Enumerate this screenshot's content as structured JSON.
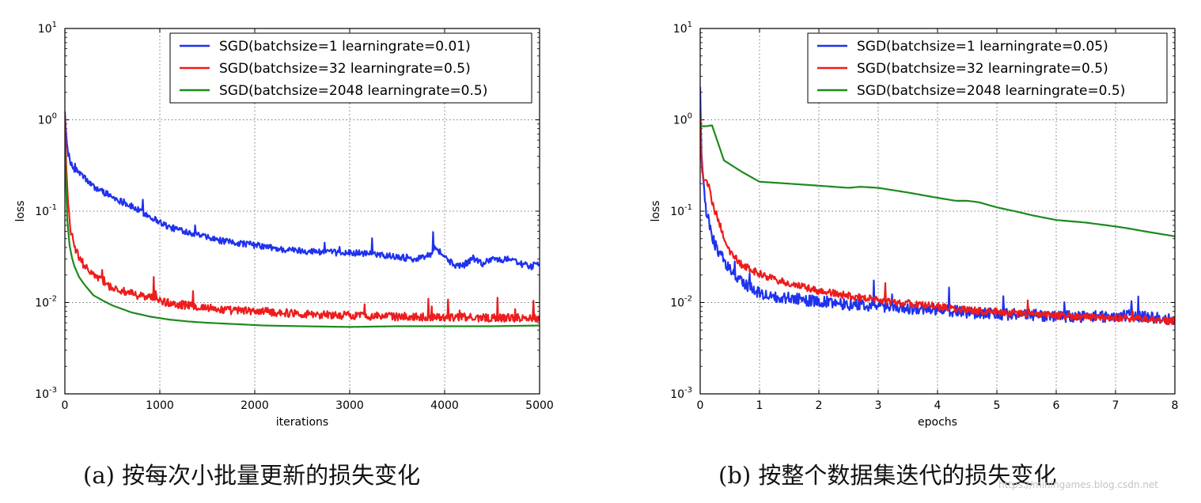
{
  "chart_data": [
    {
      "type": "line",
      "xlabel": "iterations",
      "ylabel": "loss",
      "xlim": [
        0,
        5000
      ],
      "ylim": [
        0.001,
        10
      ],
      "yscale": "log",
      "grid": true,
      "legend_position": "top-right",
      "x_ticks": [
        "0",
        "1000",
        "2000",
        "3000",
        "4000",
        "5000"
      ],
      "x_tick_values": [
        0,
        1000,
        2000,
        3000,
        4000,
        5000
      ],
      "y_ticks": [
        {
          "base": "10",
          "exp": "1",
          "value": 10
        },
        {
          "base": "10",
          "exp": "0",
          "value": 1
        },
        {
          "base": "10",
          "exp": "-1",
          "value": 0.1
        },
        {
          "base": "10",
          "exp": "-2",
          "value": 0.01
        },
        {
          "base": "10",
          "exp": "-3",
          "value": 0.001
        }
      ],
      "series": [
        {
          "name": "SGD(batchsize=1 learningrate=0.01)",
          "color": "#1f32ee",
          "noise": 0.07,
          "x": [
            0,
            10,
            30,
            60,
            100,
            150,
            200,
            300,
            400,
            500,
            700,
            900,
            1100,
            1300,
            1500,
            1700,
            1900,
            2100,
            2300,
            2500,
            2700,
            2900,
            3100,
            3300,
            3500,
            3700,
            3850,
            3900,
            3950,
            4000,
            4100,
            4200,
            4300,
            4400,
            4500,
            4600,
            4700,
            4800,
            4900,
            5000
          ],
          "y": [
            1.3,
            0.7,
            0.45,
            0.32,
            0.28,
            0.26,
            0.23,
            0.18,
            0.16,
            0.14,
            0.11,
            0.085,
            0.065,
            0.058,
            0.05,
            0.045,
            0.043,
            0.04,
            0.037,
            0.036,
            0.035,
            0.034,
            0.034,
            0.033,
            0.031,
            0.029,
            0.033,
            0.04,
            0.035,
            0.031,
            0.025,
            0.025,
            0.03,
            0.026,
            0.03,
            0.028,
            0.03,
            0.026,
            0.024,
            0.026
          ]
        },
        {
          "name": "SGD(batchsize=32 learningrate=0.5)",
          "color": "#ee1c1c",
          "noise": 0.09,
          "x": [
            0,
            10,
            30,
            60,
            100,
            150,
            200,
            300,
            400,
            500,
            700,
            900,
            1100,
            1300,
            1500,
            1700,
            2000,
            2300,
            2600,
            3000,
            3500,
            4000,
            4500,
            5000
          ],
          "y": [
            1.2,
            0.4,
            0.13,
            0.06,
            0.04,
            0.03,
            0.025,
            0.02,
            0.016,
            0.014,
            0.012,
            0.011,
            0.0095,
            0.009,
            0.0085,
            0.008,
            0.0078,
            0.0075,
            0.0072,
            0.007,
            0.0068,
            0.0067,
            0.0066,
            0.0066
          ]
        },
        {
          "name": "SGD(batchsize=2048 learningrate=0.5)",
          "color": "#1e8a1e",
          "noise": 0,
          "x": [
            0,
            10,
            30,
            60,
            100,
            150,
            200,
            300,
            400,
            500,
            700,
            900,
            1100,
            1300,
            1500,
            1800,
            2100,
            2500,
            3000,
            3500,
            4000,
            4500,
            5000
          ],
          "y": [
            0.5,
            0.2,
            0.06,
            0.035,
            0.025,
            0.019,
            0.016,
            0.012,
            0.0105,
            0.0093,
            0.0078,
            0.007,
            0.0065,
            0.0062,
            0.006,
            0.0058,
            0.0056,
            0.0055,
            0.0054,
            0.0055,
            0.0055,
            0.0055,
            0.0056
          ]
        }
      ]
    },
    {
      "type": "line",
      "xlabel": "epochs",
      "ylabel": "loss",
      "xlim": [
        0,
        8
      ],
      "ylim": [
        0.001,
        10
      ],
      "yscale": "log",
      "grid": true,
      "legend_position": "top-right",
      "x_ticks": [
        "0",
        "1",
        "2",
        "3",
        "4",
        "5",
        "6",
        "7",
        "8"
      ],
      "x_tick_values": [
        0,
        1,
        2,
        3,
        4,
        5,
        6,
        7,
        8
      ],
      "y_ticks": [
        {
          "base": "10",
          "exp": "1",
          "value": 10
        },
        {
          "base": "10",
          "exp": "0",
          "value": 1
        },
        {
          "base": "10",
          "exp": "-1",
          "value": 0.1
        },
        {
          "base": "10",
          "exp": "-2",
          "value": 0.01
        },
        {
          "base": "10",
          "exp": "-3",
          "value": 0.001
        }
      ],
      "series": [
        {
          "name": "SGD(batchsize=1 learningrate=0.05)",
          "color": "#1f32ee",
          "noise": 0.13,
          "x": [
            0,
            0.02,
            0.05,
            0.1,
            0.2,
            0.3,
            0.5,
            0.7,
            1.0,
            1.3,
            1.6,
            2.0,
            2.3,
            2.6,
            3.0,
            3.5,
            4.0,
            4.5,
            5.0,
            5.5,
            6.0,
            6.5,
            7.0,
            7.5,
            8.0
          ],
          "y": [
            2.0,
            0.5,
            0.2,
            0.1,
            0.05,
            0.035,
            0.022,
            0.016,
            0.012,
            0.011,
            0.0105,
            0.0098,
            0.0095,
            0.009,
            0.0088,
            0.0083,
            0.008,
            0.0075,
            0.0072,
            0.007,
            0.0068,
            0.0067,
            0.0068,
            0.0068,
            0.006
          ]
        },
        {
          "name": "SGD(batchsize=32 learningrate=0.5)",
          "color": "#ee1c1c",
          "noise": 0.08,
          "x": [
            0,
            0.02,
            0.05,
            0.1,
            0.15,
            0.2,
            0.3,
            0.4,
            0.5,
            0.7,
            1.0,
            1.3,
            1.6,
            2.0,
            2.5,
            3.0,
            3.5,
            4.0,
            4.5,
            5.0,
            5.5,
            6.0,
            6.5,
            7.0,
            7.5,
            8.0
          ],
          "y": [
            1.0,
            0.35,
            0.22,
            0.2,
            0.18,
            0.12,
            0.08,
            0.05,
            0.035,
            0.025,
            0.02,
            0.017,
            0.015,
            0.013,
            0.0115,
            0.0105,
            0.0095,
            0.0088,
            0.008,
            0.0077,
            0.0073,
            0.007,
            0.0068,
            0.0066,
            0.0065,
            0.006
          ]
        },
        {
          "name": "SGD(batchsize=2048 learningrate=0.5)",
          "color": "#1e8a1e",
          "noise": 0,
          "x": [
            0,
            0.1,
            0.2,
            0.4,
            0.7,
            1.0,
            1.5,
            2.0,
            2.5,
            2.7,
            3.0,
            3.5,
            4.0,
            4.3,
            4.5,
            4.7,
            5.0,
            5.3,
            5.6,
            6.0,
            6.5,
            7.0,
            7.2,
            7.5,
            8.0
          ],
          "y": [
            0.85,
            0.85,
            0.87,
            0.36,
            0.27,
            0.21,
            0.2,
            0.19,
            0.18,
            0.185,
            0.18,
            0.16,
            0.14,
            0.13,
            0.13,
            0.125,
            0.11,
            0.1,
            0.09,
            0.08,
            0.075,
            0.068,
            0.065,
            0.06,
            0.053
          ]
        }
      ]
    }
  ],
  "captions": [
    "(a) 按每次小批量更新的损失变化",
    "(b) 按整个数据集迭代的损失变化"
  ],
  "watermark": "https://miningames.blog.csdn.net"
}
